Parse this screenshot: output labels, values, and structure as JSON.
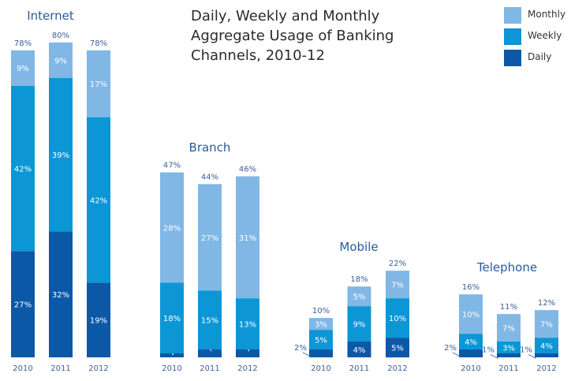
{
  "chart_data": {
    "type": "bar",
    "stacked": true,
    "title": "Daily, Weekly and Monthly Aggregate Usage of Banking Channels, 2010-12",
    "title_lines": [
      "Daily, Weekly and Monthly",
      "Aggregate Usage of Banking",
      "Channels, 2010-12"
    ],
    "xlabel": "",
    "ylabel": "",
    "ylim": [
      0,
      80
    ],
    "grid": false,
    "unit": "%",
    "legend_position": "top-right",
    "legend": [
      {
        "name": "Monthly",
        "color": "#80b7e5"
      },
      {
        "name": "Weekly",
        "color": "#0c96d6"
      },
      {
        "name": "Daily",
        "color": "#0b58a7"
      }
    ],
    "categories": [
      "2010",
      "2011",
      "2012"
    ],
    "groups": [
      {
        "name": "Internet",
        "totals": [
          78,
          80,
          78
        ],
        "series": [
          {
            "name": "Daily",
            "values": [
              27,
              32,
              19
            ]
          },
          {
            "name": "Weekly",
            "values": [
              42,
              39,
              42
            ]
          },
          {
            "name": "Monthly",
            "values": [
              9,
              9,
              17
            ]
          }
        ]
      },
      {
        "name": "Branch",
        "totals": [
          47,
          44,
          46
        ],
        "series": [
          {
            "name": "Daily",
            "values": [
              1,
              2,
              2
            ]
          },
          {
            "name": "Weekly",
            "values": [
              18,
              15,
              13
            ]
          },
          {
            "name": "Monthly",
            "values": [
              28,
              27,
              31
            ]
          }
        ]
      },
      {
        "name": "Mobile",
        "totals": [
          10,
          18,
          22
        ],
        "series": [
          {
            "name": "Daily",
            "values": [
              2,
              4,
              5
            ]
          },
          {
            "name": "Weekly",
            "values": [
              5,
              9,
              10
            ]
          },
          {
            "name": "Monthly",
            "values": [
              3,
              5,
              7
            ]
          }
        ]
      },
      {
        "name": "Telephone",
        "totals": [
          16,
          11,
          12
        ],
        "series": [
          {
            "name": "Daily",
            "values": [
              2,
              1,
              1
            ]
          },
          {
            "name": "Weekly",
            "values": [
              4,
              3,
              4
            ]
          },
          {
            "name": "Monthly",
            "values": [
              10,
              7,
              7
            ]
          }
        ]
      }
    ]
  }
}
